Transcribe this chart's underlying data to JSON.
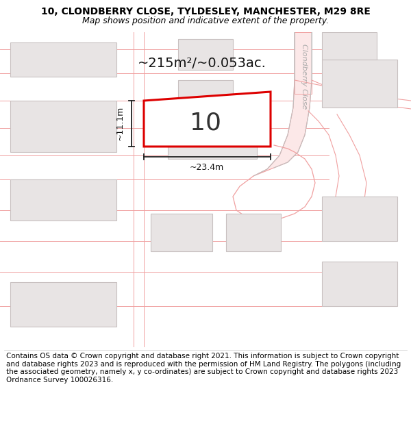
{
  "title_line1": "10, CLONDBERRY CLOSE, TYLDESLEY, MANCHESTER, M29 8RE",
  "title_line2": "Map shows position and indicative extent of the property.",
  "footer_text": "Contains OS data © Crown copyright and database right 2021. This information is subject to Crown copyright and database rights 2023 and is reproduced with the permission of HM Land Registry. The polygons (including the associated geometry, namely x, y co-ordinates) are subject to Crown copyright and database rights 2023 Ordnance Survey 100026316.",
  "map_bg": "#ffffff",
  "road_fill": "#fce8e8",
  "road_line": "#f0a0a0",
  "parcel_line": "#f0a0a0",
  "highlight_color": "#dd0000",
  "highlight_fill": "#ffffff",
  "building_fill": "#e8e4e4",
  "building_outline": "#c8c0c0",
  "street_label_color": "#aaaaaa",
  "area_text": "~215m²/~0.053ac.",
  "number_label": "10",
  "dim1_label": "~11.1m",
  "dim2_label": "~23.4m",
  "street_label": "Clondberry Close",
  "title_fontsize": 10,
  "subtitle_fontsize": 9,
  "footer_fontsize": 7.5
}
